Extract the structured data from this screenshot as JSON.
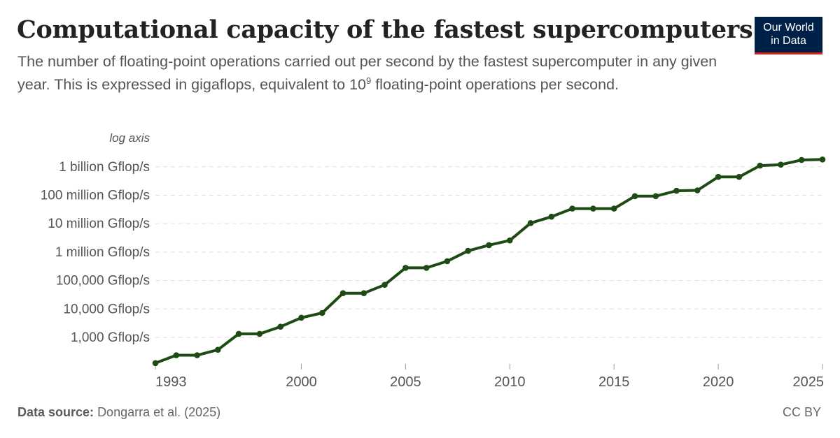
{
  "header": {
    "title": "Computational capacity of the fastest supercomputers",
    "subtitle_before": "The number of floating-point operations carried out per second by the fastest supercomputer in any given year. This is expressed in gigaflops, equivalent to 10",
    "subtitle_exponent": "9",
    "subtitle_after": " floating-point operations per second."
  },
  "logo": {
    "line1": "Our World",
    "line2": "in Data"
  },
  "footer": {
    "source_label": "Data source:",
    "source_text": "Dongarra et al. (2025)",
    "license": "CC BY"
  },
  "colors": {
    "line": "#1e4a14",
    "grid": "#dddddd",
    "axis_text": "#555555"
  },
  "chart_data": {
    "type": "line",
    "scale": "log",
    "axis_note": "log axis",
    "series": [
      {
        "name": "Fastest supercomputer",
        "x": [
          1993,
          1994,
          1995,
          1996,
          1997,
          1998,
          1999,
          2000,
          2001,
          2002,
          2003,
          2004,
          2005,
          2006,
          2007,
          2008,
          2009,
          2010,
          2011,
          2012,
          2013,
          2014,
          2015,
          2016,
          2017,
          2018,
          2019,
          2020,
          2021,
          2022,
          2023,
          2024,
          2025
        ],
        "values": [
          124.5,
          236.8,
          236.8,
          368.2,
          1338,
          1338,
          2379,
          4938,
          7226,
          35860,
          35860,
          70720,
          280600,
          280600,
          478200,
          1105000,
          1759000,
          2566000,
          10510000,
          17590000,
          33860000,
          33860000,
          33860000,
          93010000,
          93010000,
          143500000,
          148600000,
          442000000,
          442000000,
          1102000000,
          1194000000,
          1742000000,
          1809000000
        ]
      }
    ],
    "y_ticks": [
      {
        "value": 1000,
        "label": "1,000 Gflop/s"
      },
      {
        "value": 10000,
        "label": "10,000 Gflop/s"
      },
      {
        "value": 100000,
        "label": "100,000 Gflop/s"
      },
      {
        "value": 1000000,
        "label": "1 million Gflop/s"
      },
      {
        "value": 10000000,
        "label": "10 million Gflop/s"
      },
      {
        "value": 100000000,
        "label": "100 million Gflop/s"
      },
      {
        "value": 1000000000,
        "label": "1 billion Gflop/s"
      }
    ],
    "x_ticks": [
      {
        "value": 1993,
        "label": "1993"
      },
      {
        "value": 2000,
        "label": "2000"
      },
      {
        "value": 2005,
        "label": "2005"
      },
      {
        "value": 2010,
        "label": "2010"
      },
      {
        "value": 2015,
        "label": "2015"
      },
      {
        "value": 2020,
        "label": "2020"
      },
      {
        "value": 2025,
        "label": "2025"
      }
    ],
    "xlim": [
      1993,
      2025
    ],
    "ylim": [
      100,
      2000000000
    ]
  }
}
